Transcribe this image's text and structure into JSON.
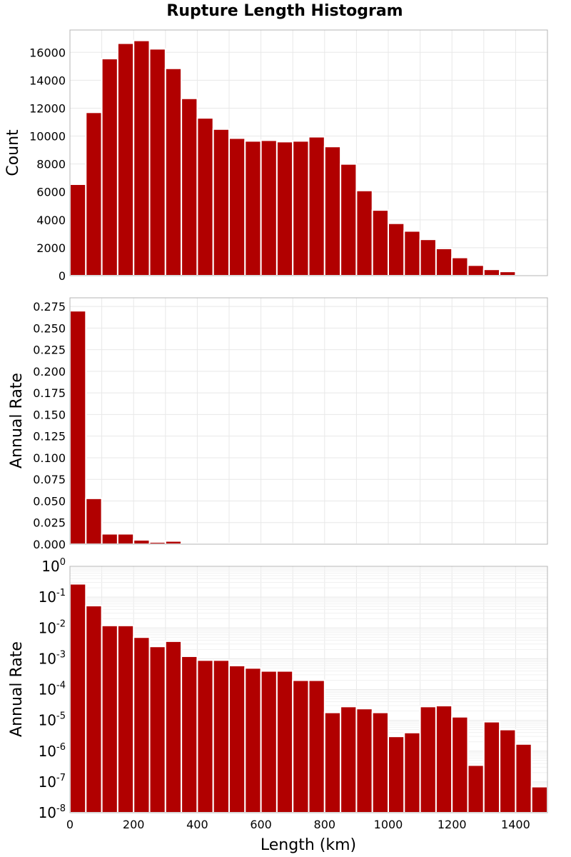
{
  "chart_data": [
    {
      "type": "bar",
      "panel": "count",
      "title": "Rupture Length Histogram",
      "xlabel": "Length (km)",
      "ylabel": "Count",
      "xlim": [
        0,
        1500
      ],
      "ylim": [
        0,
        17600
      ],
      "yscale": "linear",
      "bin_width": 50,
      "x_bin_starts": [
        0,
        50,
        100,
        150,
        200,
        250,
        300,
        350,
        400,
        450,
        500,
        550,
        600,
        650,
        700,
        750,
        800,
        850,
        900,
        950,
        1000,
        1050,
        1100,
        1150,
        1200,
        1250,
        1300,
        1350,
        1400,
        1450
      ],
      "y_ticks": [
        0,
        2000,
        4000,
        6000,
        8000,
        10000,
        12000,
        14000,
        16000
      ],
      "y_tick_labels": [
        "0",
        "2000",
        "4000",
        "6000",
        "8000",
        "10000",
        "12000",
        "14000",
        "16000"
      ],
      "values": [
        6550,
        11700,
        15550,
        16650,
        16850,
        16250,
        14850,
        12700,
        11300,
        10500,
        9850,
        9650,
        9700,
        9600,
        9650,
        9950,
        9250,
        8000,
        6100,
        4700,
        3750,
        3200,
        2600,
        1950,
        1300,
        750,
        450,
        300,
        80,
        20
      ]
    },
    {
      "type": "bar",
      "panel": "annual-rate-linear",
      "xlabel": "Length (km)",
      "ylabel": "Annual Rate",
      "xlim": [
        0,
        1500
      ],
      "ylim": [
        0,
        0.285
      ],
      "yscale": "linear",
      "bin_width": 50,
      "x_bin_starts": [
        0,
        50,
        100,
        150,
        200,
        250,
        300,
        350,
        400,
        450,
        500,
        550,
        600,
        650,
        700,
        750,
        800,
        850,
        900,
        950,
        1000,
        1050,
        1100,
        1150,
        1200,
        1250,
        1300,
        1350,
        1400,
        1450
      ],
      "y_ticks": [
        0,
        0.025,
        0.05,
        0.075,
        0.1,
        0.125,
        0.15,
        0.175,
        0.2,
        0.225,
        0.25,
        0.275
      ],
      "y_tick_labels": [
        "0.000",
        "0.025",
        "0.050",
        "0.075",
        "0.100",
        "0.125",
        "0.150",
        "0.175",
        "0.200",
        "0.225",
        "0.250",
        "0.275"
      ],
      "values": [
        0.27,
        0.053,
        0.012,
        0.012,
        0.005,
        0.0025,
        0.0037,
        0.0012,
        0.0009,
        0.0009,
        0.0006,
        0.0005,
        0.0004,
        0.0004,
        0.0002,
        0.0002,
        1.8e-05,
        2.8e-05,
        2.4e-05,
        1.8e-05,
        3e-06,
        4e-06,
        2.8e-05,
        3e-05,
        1.3e-05,
        3.5e-07,
        9e-06,
        5e-06,
        1.7e-06,
        7e-08
      ]
    },
    {
      "type": "bar",
      "panel": "annual-rate-log",
      "xlabel": "Length (km)",
      "ylabel": "Annual Rate",
      "xlim": [
        0,
        1500
      ],
      "ylim_exponents": [
        -8,
        0
      ],
      "yscale": "log",
      "bin_width": 50,
      "x_bin_starts": [
        0,
        50,
        100,
        150,
        200,
        250,
        300,
        350,
        400,
        450,
        500,
        550,
        600,
        650,
        700,
        750,
        800,
        850,
        900,
        950,
        1000,
        1050,
        1100,
        1150,
        1200,
        1250,
        1300,
        1350,
        1400,
        1450
      ],
      "x_ticks": [
        0,
        200,
        400,
        600,
        800,
        1000,
        1200,
        1400
      ],
      "x_tick_labels": [
        "0",
        "200",
        "400",
        "600",
        "800",
        "1000",
        "1200",
        "1400"
      ],
      "y_tick_base": "10",
      "y_tick_exponents": [
        "-8",
        "-7",
        "-6",
        "-5",
        "-4",
        "-3",
        "-2",
        "-1",
        "0"
      ],
      "values": [
        0.27,
        0.053,
        0.012,
        0.012,
        0.005,
        0.0025,
        0.0037,
        0.0012,
        0.0009,
        0.0009,
        0.0006,
        0.0005,
        0.0004,
        0.0004,
        0.0002,
        0.0002,
        1.8e-05,
        2.8e-05,
        2.4e-05,
        1.8e-05,
        3e-06,
        4e-06,
        2.8e-05,
        3e-05,
        1.3e-05,
        3.5e-07,
        9e-06,
        5e-06,
        1.7e-06,
        7e-08
      ]
    }
  ]
}
